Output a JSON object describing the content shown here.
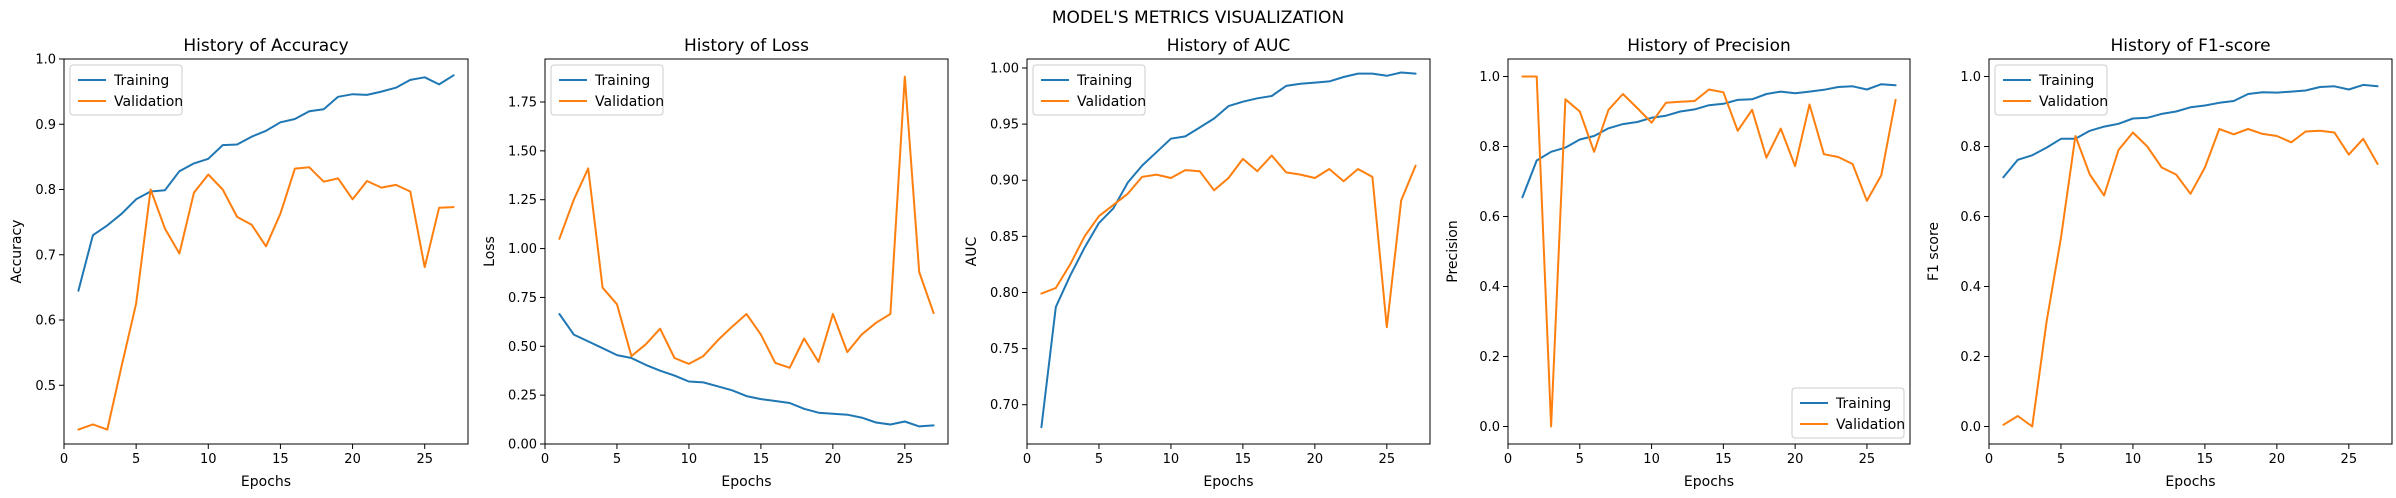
{
  "figure": {
    "suptitle": "MODEL'S METRICS VISUALIZATION"
  },
  "colors": {
    "training": "#1f77b4",
    "validation": "#ff7f0e",
    "axis": "#000000",
    "legend_border": "#cccccc"
  },
  "chart_data": [
    {
      "type": "line",
      "title": "History of Accuracy",
      "xlabel": "Epochs",
      "ylabel": "Accuracy",
      "xlim": [
        0,
        28
      ],
      "ylim": [
        0.41,
        1.0
      ],
      "xticks": [
        0,
        5,
        10,
        15,
        20,
        25
      ],
      "yticks": [
        0.5,
        0.6,
        0.7,
        0.8,
        0.9,
        1.0
      ],
      "ytick_labels": [
        "0.5",
        "0.6",
        "0.7",
        "0.8",
        "0.9",
        "1.0"
      ],
      "legend_position": "upper-left",
      "x": [
        1,
        2,
        3,
        4,
        5,
        6,
        7,
        8,
        9,
        10,
        11,
        12,
        13,
        14,
        15,
        16,
        17,
        18,
        19,
        20,
        21,
        22,
        23,
        24,
        25,
        26,
        27
      ],
      "series": [
        {
          "name": "Training",
          "color": "#1f77b4",
          "values": [
            0.645,
            0.73,
            0.745,
            0.763,
            0.785,
            0.797,
            0.799,
            0.828,
            0.84,
            0.847,
            0.868,
            0.869,
            0.881,
            0.89,
            0.903,
            0.908,
            0.92,
            0.923,
            0.942,
            0.946,
            0.945,
            0.95,
            0.956,
            0.968,
            0.972,
            0.961,
            0.975
          ]
        },
        {
          "name": "Validation",
          "color": "#ff7f0e",
          "values": [
            0.432,
            0.44,
            0.432,
            0.53,
            0.625,
            0.8,
            0.74,
            0.702,
            0.795,
            0.823,
            0.8,
            0.758,
            0.746,
            0.713,
            0.763,
            0.832,
            0.834,
            0.812,
            0.817,
            0.785,
            0.813,
            0.803,
            0.807,
            0.797,
            0.681,
            0.772,
            0.773
          ]
        }
      ]
    },
    {
      "type": "line",
      "title": "History of Loss",
      "xlabel": "Epochs",
      "ylabel": "Loss",
      "xlim": [
        0,
        28
      ],
      "ylim": [
        0.0,
        1.97
      ],
      "xticks": [
        0,
        5,
        10,
        15,
        20,
        25
      ],
      "yticks": [
        0.0,
        0.25,
        0.5,
        0.75,
        1.0,
        1.25,
        1.5,
        1.75
      ],
      "ytick_labels": [
        "0.00",
        "0.25",
        "0.50",
        "0.75",
        "1.00",
        "1.25",
        "1.50",
        "1.75"
      ],
      "legend_position": "upper-left",
      "x": [
        1,
        2,
        3,
        4,
        5,
        6,
        7,
        8,
        9,
        10,
        11,
        12,
        13,
        14,
        15,
        16,
        17,
        18,
        19,
        20,
        21,
        22,
        23,
        24,
        25,
        26,
        27
      ],
      "series": [
        {
          "name": "Training",
          "color": "#1f77b4",
          "values": [
            0.665,
            0.56,
            0.525,
            0.49,
            0.455,
            0.44,
            0.405,
            0.375,
            0.35,
            0.32,
            0.315,
            0.295,
            0.275,
            0.245,
            0.23,
            0.22,
            0.21,
            0.18,
            0.16,
            0.155,
            0.15,
            0.135,
            0.11,
            0.1,
            0.115,
            0.09,
            0.095
          ]
        },
        {
          "name": "Validation",
          "color": "#ff7f0e",
          "values": [
            1.05,
            1.25,
            1.41,
            0.8,
            0.715,
            0.45,
            0.51,
            0.59,
            0.44,
            0.41,
            0.45,
            0.53,
            0.6,
            0.665,
            0.56,
            0.415,
            0.39,
            0.54,
            0.42,
            0.665,
            0.47,
            0.56,
            0.62,
            0.665,
            1.88,
            0.88,
            0.67
          ]
        }
      ]
    },
    {
      "type": "line",
      "title": "History of AUC",
      "xlabel": "Epochs",
      "ylabel": "AUC",
      "xlim": [
        0,
        28
      ],
      "ylim": [
        0.665,
        1.008
      ],
      "xticks": [
        0,
        5,
        10,
        15,
        20,
        25
      ],
      "yticks": [
        0.7,
        0.75,
        0.8,
        0.85,
        0.9,
        0.95,
        1.0
      ],
      "ytick_labels": [
        "0.70",
        "0.75",
        "0.80",
        "0.85",
        "0.90",
        "0.95",
        "1.00"
      ],
      "legend_position": "upper-left",
      "x": [
        1,
        2,
        3,
        4,
        5,
        6,
        7,
        8,
        9,
        10,
        11,
        12,
        13,
        14,
        15,
        16,
        17,
        18,
        19,
        20,
        21,
        22,
        23,
        24,
        25,
        26,
        27
      ],
      "series": [
        {
          "name": "Training",
          "color": "#1f77b4",
          "values": [
            0.68,
            0.787,
            0.815,
            0.84,
            0.862,
            0.875,
            0.898,
            0.913,
            0.925,
            0.937,
            0.939,
            0.947,
            0.955,
            0.966,
            0.97,
            0.973,
            0.975,
            0.984,
            0.986,
            0.987,
            0.988,
            0.992,
            0.995,
            0.995,
            0.993,
            0.996,
            0.995
          ]
        },
        {
          "name": "Validation",
          "color": "#ff7f0e",
          "values": [
            0.799,
            0.804,
            0.825,
            0.85,
            0.868,
            0.878,
            0.888,
            0.903,
            0.905,
            0.902,
            0.909,
            0.908,
            0.891,
            0.902,
            0.919,
            0.908,
            0.922,
            0.907,
            0.905,
            0.902,
            0.91,
            0.899,
            0.91,
            0.903,
            0.769,
            0.882,
            0.913
          ]
        }
      ]
    },
    {
      "type": "line",
      "title": "History of Precision",
      "xlabel": "Epochs",
      "ylabel": "Precision",
      "xlim": [
        0,
        28
      ],
      "ylim": [
        -0.05,
        1.05
      ],
      "xticks": [
        0,
        5,
        10,
        15,
        20,
        25
      ],
      "yticks": [
        0.0,
        0.2,
        0.4,
        0.6,
        0.8,
        1.0
      ],
      "ytick_labels": [
        "0.0",
        "0.2",
        "0.4",
        "0.6",
        "0.8",
        "1.0"
      ],
      "legend_position": "lower-right",
      "x": [
        1,
        2,
        3,
        4,
        5,
        6,
        7,
        8,
        9,
        10,
        11,
        12,
        13,
        14,
        15,
        16,
        17,
        18,
        19,
        20,
        21,
        22,
        23,
        24,
        25,
        26,
        27
      ],
      "series": [
        {
          "name": "Training",
          "color": "#1f77b4",
          "values": [
            0.655,
            0.76,
            0.785,
            0.797,
            0.82,
            0.83,
            0.852,
            0.864,
            0.87,
            0.882,
            0.888,
            0.9,
            0.906,
            0.918,
            0.922,
            0.933,
            0.935,
            0.95,
            0.957,
            0.952,
            0.957,
            0.962,
            0.97,
            0.972,
            0.963,
            0.978,
            0.975
          ]
        },
        {
          "name": "Validation",
          "color": "#ff7f0e",
          "values": [
            1.0,
            1.0,
            0.0,
            0.935,
            0.9,
            0.785,
            0.905,
            0.95,
            0.91,
            0.868,
            0.925,
            0.928,
            0.93,
            0.963,
            0.955,
            0.845,
            0.905,
            0.768,
            0.851,
            0.744,
            0.92,
            0.778,
            0.77,
            0.75,
            0.645,
            0.718,
            0.933
          ]
        }
      ]
    },
    {
      "type": "line",
      "title": "History of F1-score",
      "xlabel": "Epochs",
      "ylabel": "F1 score",
      "xlim": [
        0,
        28
      ],
      "ylim": [
        -0.05,
        1.05
      ],
      "xticks": [
        0,
        5,
        10,
        15,
        20,
        25
      ],
      "yticks": [
        0.0,
        0.2,
        0.4,
        0.6,
        0.8,
        1.0
      ],
      "ytick_labels": [
        "0.0",
        "0.2",
        "0.4",
        "0.6",
        "0.8",
        "1.0"
      ],
      "legend_position": "upper-left",
      "x": [
        1,
        2,
        3,
        4,
        5,
        6,
        7,
        8,
        9,
        10,
        11,
        12,
        13,
        14,
        15,
        16,
        17,
        18,
        19,
        20,
        21,
        22,
        23,
        24,
        25,
        26,
        27
      ],
      "series": [
        {
          "name": "Training",
          "color": "#1f77b4",
          "values": [
            0.712,
            0.762,
            0.775,
            0.797,
            0.822,
            0.822,
            0.845,
            0.857,
            0.865,
            0.88,
            0.882,
            0.893,
            0.9,
            0.912,
            0.917,
            0.925,
            0.93,
            0.95,
            0.955,
            0.954,
            0.957,
            0.96,
            0.97,
            0.972,
            0.963,
            0.976,
            0.972
          ]
        },
        {
          "name": "Validation",
          "color": "#ff7f0e",
          "values": [
            0.005,
            0.03,
            0.0,
            0.3,
            0.54,
            0.83,
            0.72,
            0.66,
            0.79,
            0.84,
            0.8,
            0.74,
            0.72,
            0.665,
            0.74,
            0.85,
            0.835,
            0.85,
            0.836,
            0.83,
            0.812,
            0.843,
            0.845,
            0.84,
            0.777,
            0.822,
            0.75
          ]
        }
      ]
    }
  ]
}
